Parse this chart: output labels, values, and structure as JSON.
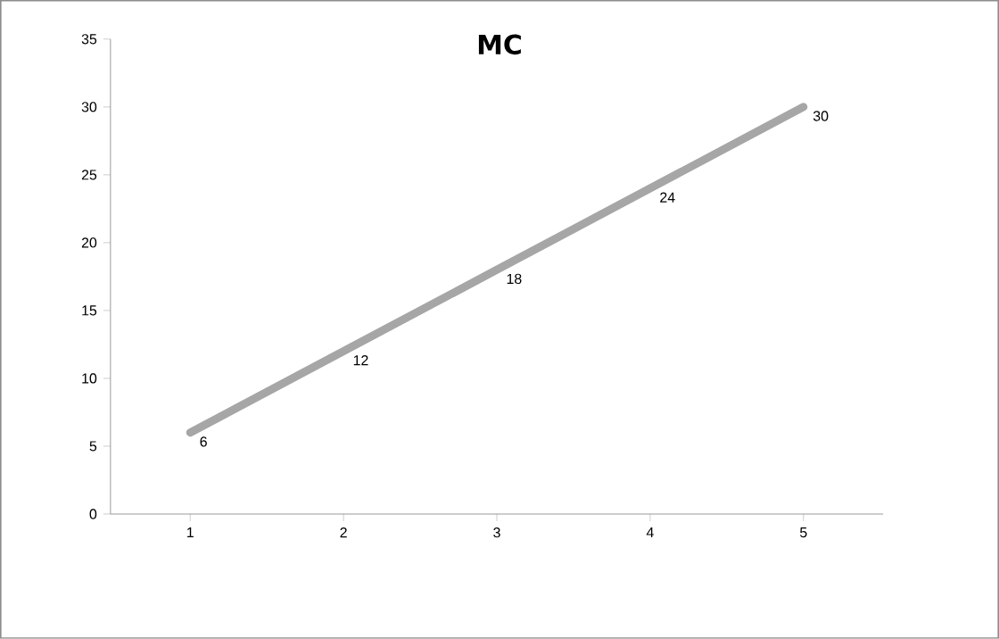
{
  "chart_data": {
    "type": "line",
    "title": "MC",
    "categories": [
      "1",
      "2",
      "3",
      "4",
      "5"
    ],
    "series": [
      {
        "color": "#a6a6a6",
        "values": [
          6,
          12,
          18,
          24,
          30
        ]
      }
    ],
    "ylim": [
      0,
      35
    ],
    "yticks": [
      0,
      5,
      10,
      15,
      20,
      25,
      30,
      35
    ],
    "data_labels": true,
    "grid": false,
    "marker": "none",
    "line_style": "solid"
  }
}
